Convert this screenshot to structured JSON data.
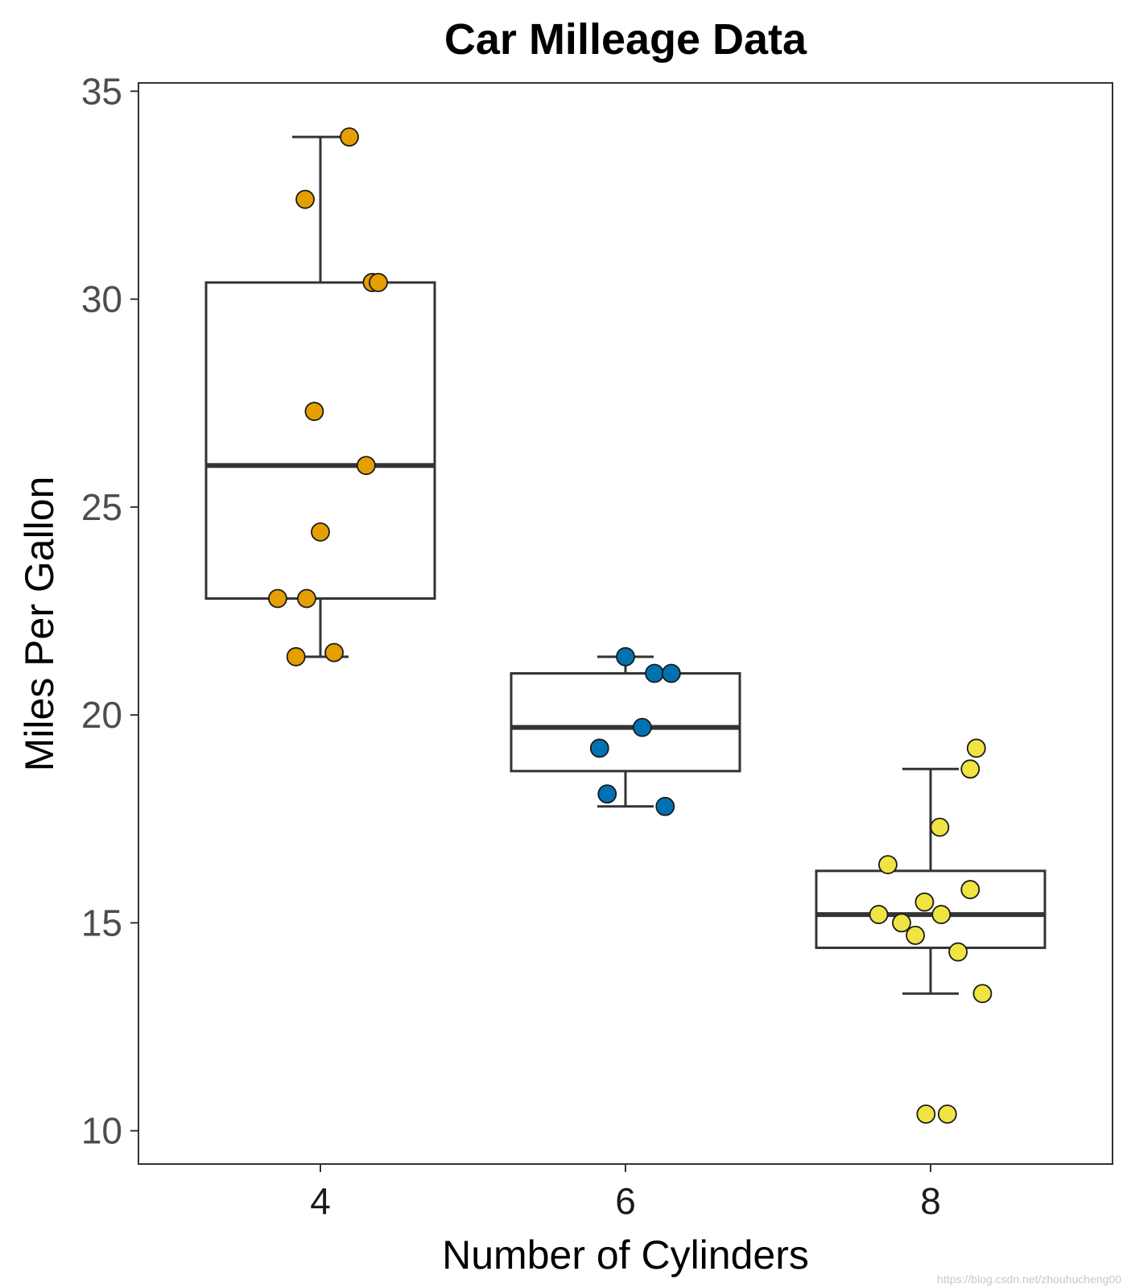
{
  "chart_data": {
    "type": "boxplot",
    "title": "Car Milleage Data",
    "xlabel": "Number of Cylinders",
    "ylabel": "Miles Per Gallon",
    "categories": [
      "4",
      "6",
      "8"
    ],
    "ylim": [
      9.2,
      35.2
    ],
    "yticks": [
      10,
      15,
      20,
      25,
      30,
      35
    ],
    "grid": false,
    "boxes": [
      {
        "category": "4",
        "color": "#E69F00",
        "q1": 22.8,
        "median": 26.0,
        "q3": 30.4,
        "whisker_low": 21.4,
        "whisker_high": 33.9
      },
      {
        "category": "6",
        "color": "#0072B2",
        "q1": 18.65,
        "median": 19.7,
        "q3": 21.0,
        "whisker_low": 17.8,
        "whisker_high": 21.4
      },
      {
        "category": "8",
        "color": "#F0E442",
        "q1": 14.4,
        "median": 15.2,
        "q3": 16.25,
        "whisker_low": 13.3,
        "whisker_high": 18.7
      }
    ],
    "points": [
      {
        "category": "4",
        "jitter": 0.095,
        "y": 33.9
      },
      {
        "category": "4",
        "jitter": -0.05,
        "y": 32.4
      },
      {
        "category": "4",
        "jitter": 0.17,
        "y": 30.4
      },
      {
        "category": "4",
        "jitter": 0.19,
        "y": 30.4
      },
      {
        "category": "4",
        "jitter": -0.02,
        "y": 27.3
      },
      {
        "category": "4",
        "jitter": 0.15,
        "y": 26.0
      },
      {
        "category": "4",
        "jitter": 0.0,
        "y": 24.4
      },
      {
        "category": "4",
        "jitter": -0.14,
        "y": 22.8
      },
      {
        "category": "4",
        "jitter": -0.045,
        "y": 22.8
      },
      {
        "category": "4",
        "jitter": -0.08,
        "y": 21.4
      },
      {
        "category": "4",
        "jitter": 0.045,
        "y": 21.5
      },
      {
        "category": "6",
        "jitter": 0.0,
        "y": 21.4
      },
      {
        "category": "6",
        "jitter": 0.095,
        "y": 21.0
      },
      {
        "category": "6",
        "jitter": 0.15,
        "y": 21.0
      },
      {
        "category": "6",
        "jitter": 0.055,
        "y": 19.7
      },
      {
        "category": "6",
        "jitter": -0.085,
        "y": 19.2
      },
      {
        "category": "6",
        "jitter": -0.06,
        "y": 18.1
      },
      {
        "category": "6",
        "jitter": 0.13,
        "y": 17.8
      },
      {
        "category": "8",
        "jitter": 0.15,
        "y": 19.2
      },
      {
        "category": "8",
        "jitter": 0.13,
        "y": 18.7
      },
      {
        "category": "8",
        "jitter": 0.03,
        "y": 17.3
      },
      {
        "category": "8",
        "jitter": -0.14,
        "y": 16.4
      },
      {
        "category": "8",
        "jitter": 0.13,
        "y": 15.8
      },
      {
        "category": "8",
        "jitter": -0.02,
        "y": 15.5
      },
      {
        "category": "8",
        "jitter": -0.17,
        "y": 15.2
      },
      {
        "category": "8",
        "jitter": 0.035,
        "y": 15.2
      },
      {
        "category": "8",
        "jitter": -0.095,
        "y": 15.0
      },
      {
        "category": "8",
        "jitter": -0.05,
        "y": 14.7
      },
      {
        "category": "8",
        "jitter": 0.09,
        "y": 14.3
      },
      {
        "category": "8",
        "jitter": 0.17,
        "y": 13.3
      },
      {
        "category": "8",
        "jitter": -0.015,
        "y": 10.4
      },
      {
        "category": "8",
        "jitter": 0.055,
        "y": 10.4
      }
    ]
  },
  "watermark": "https://blog.csdn.net/zhouhucheng00"
}
